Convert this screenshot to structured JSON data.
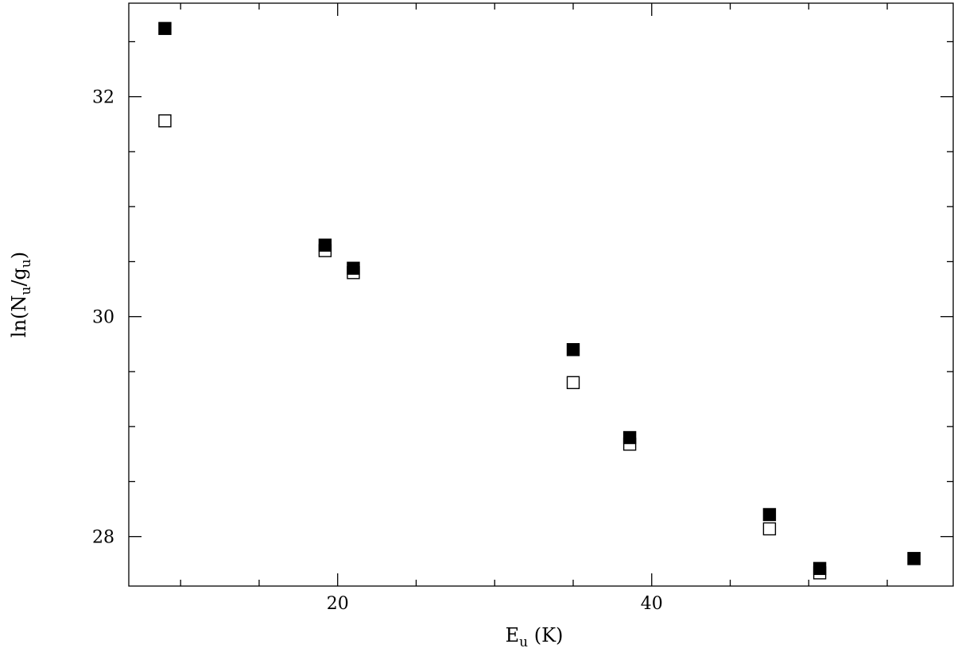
{
  "chart_data": {
    "type": "scatter",
    "title": "",
    "xlabel": {
      "main": "E",
      "sub": "u",
      "rest": " (K)"
    },
    "ylabel": {
      "pre": "ln(N",
      "sub1": "u",
      "mid": "/g",
      "sub2": "u",
      "post": ")"
    },
    "xlim": [
      6.7,
      59.2
    ],
    "ylim": [
      27.55,
      32.85
    ],
    "x_ticks_major": [
      20,
      40
    ],
    "x_tick_labels": [
      "20",
      "40"
    ],
    "x_ticks_minor": [
      10,
      15,
      25,
      30,
      35,
      45,
      50,
      55
    ],
    "y_ticks_major": [
      28,
      30,
      32
    ],
    "y_tick_labels": [
      "28",
      "30",
      "32"
    ],
    "y_ticks_minor": [
      28.5,
      29,
      29.5,
      30.5,
      31,
      31.5,
      32.5
    ],
    "grid": false,
    "series": [
      {
        "marker": "filled-square",
        "color": "#000000",
        "points": [
          {
            "x": 9.0,
            "y": 32.62
          },
          {
            "x": 19.2,
            "y": 30.65
          },
          {
            "x": 21.0,
            "y": 30.44
          },
          {
            "x": 35.0,
            "y": 29.7
          },
          {
            "x": 38.6,
            "y": 28.9
          },
          {
            "x": 47.5,
            "y": 28.2
          },
          {
            "x": 50.7,
            "y": 27.71
          },
          {
            "x": 56.7,
            "y": 27.8
          }
        ]
      },
      {
        "marker": "open-square",
        "color": "#000000",
        "points": [
          {
            "x": 9.0,
            "y": 31.78
          },
          {
            "x": 19.2,
            "y": 30.6
          },
          {
            "x": 21.0,
            "y": 30.4
          },
          {
            "x": 35.0,
            "y": 29.4
          },
          {
            "x": 38.6,
            "y": 28.84
          },
          {
            "x": 47.5,
            "y": 28.07
          },
          {
            "x": 50.7,
            "y": 27.67
          },
          {
            "x": 56.7,
            "y": 27.8
          }
        ]
      }
    ]
  }
}
